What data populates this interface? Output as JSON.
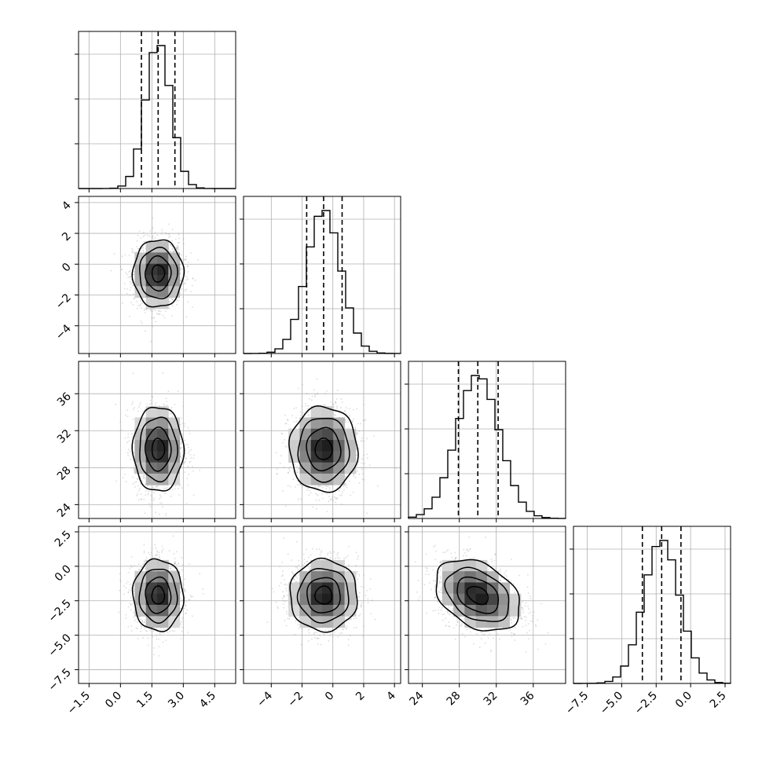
{
  "chart_data": {
    "type": "corner",
    "parameters": [
      {
        "range": [
          -2.0,
          5.5
        ],
        "ticks": [
          -1.5,
          0.0,
          1.5,
          3.0,
          4.5
        ],
        "tick_labels": [
          "−1.5",
          "0.0",
          "1.5",
          "3.0",
          "4.5"
        ],
        "mean": 1.8,
        "sd": 0.6,
        "quantiles": [
          1.0,
          1.8,
          2.6
        ]
      },
      {
        "range": [
          -5.8,
          4.4
        ],
        "ticks": [
          -4,
          -2,
          0,
          2,
          4
        ],
        "tick_labels": [
          "−4",
          "−2",
          "0",
          "2",
          "4"
        ],
        "mean": -0.6,
        "sd": 1.1,
        "quantiles": [
          -1.7,
          -0.6,
          0.6
        ]
      },
      {
        "range": [
          22.5,
          39.5
        ],
        "ticks": [
          24,
          28,
          32,
          36
        ],
        "tick_labels": [
          "24",
          "28",
          "32",
          "36"
        ],
        "mean": 30.0,
        "sd": 2.3,
        "quantiles": [
          27.9,
          30.0,
          32.2
        ]
      },
      {
        "range": [
          -8.5,
          2.9
        ],
        "ticks": [
          -7.5,
          -5.0,
          -2.5,
          0.0,
          2.5
        ],
        "tick_labels": [
          "−7.5",
          "−5.0",
          "−2.5",
          "0.0",
          "2.5"
        ],
        "mean": -2.1,
        "sd": 1.3,
        "quantiles": [
          -3.5,
          -2.1,
          -0.7
        ]
      }
    ],
    "correlations": {
      "1-0": 0.0,
      "2-0": 0.0,
      "2-1": 0.0,
      "3-0": 0.0,
      "3-1": 0.0,
      "3-2": -0.35
    },
    "histogram_bins": 20,
    "contour_levels_sigma": [
      0.5,
      1.0,
      1.5,
      2.0
    ],
    "grid": true
  },
  "colors": {
    "scatter": "#9a9a9a",
    "density_dark": "#000000",
    "line": "#000000"
  }
}
